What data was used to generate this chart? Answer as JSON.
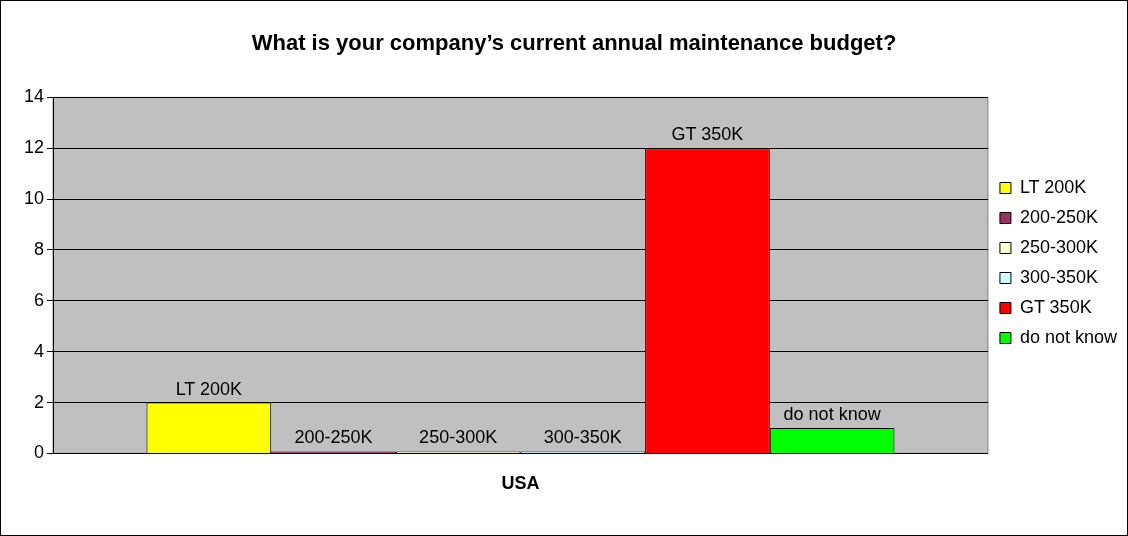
{
  "chart_data": {
    "type": "bar",
    "title": "What is your company’s current annual maintenance budget?",
    "categories": [
      "USA"
    ],
    "series": [
      {
        "name": "LT 200K",
        "color": "#ffff00",
        "values": [
          2
        ],
        "value_labels": [
          "LT 200K"
        ]
      },
      {
        "name": "200-250K",
        "color": "#993366",
        "values": [
          0
        ],
        "value_labels": [
          "200-250K"
        ]
      },
      {
        "name": "250-300K",
        "color": "#ffffcc",
        "values": [
          0
        ],
        "value_labels": [
          "250-300K"
        ]
      },
      {
        "name": "300-350K",
        "color": "#ccffff",
        "values": [
          0
        ],
        "value_labels": [
          "300-350K"
        ]
      },
      {
        "name": "GT 350K",
        "color": "#ff0000",
        "values": [
          12
        ],
        "value_labels": [
          "GT 350K"
        ]
      },
      {
        "name": "do not know",
        "color": "#00ff00",
        "values": [
          1
        ],
        "value_labels": [
          "do not know"
        ]
      }
    ],
    "ylim": [
      0,
      14
    ],
    "yticks": [
      0,
      2,
      4,
      6,
      8,
      10,
      12,
      14
    ],
    "grid": "y",
    "legend": "right"
  }
}
